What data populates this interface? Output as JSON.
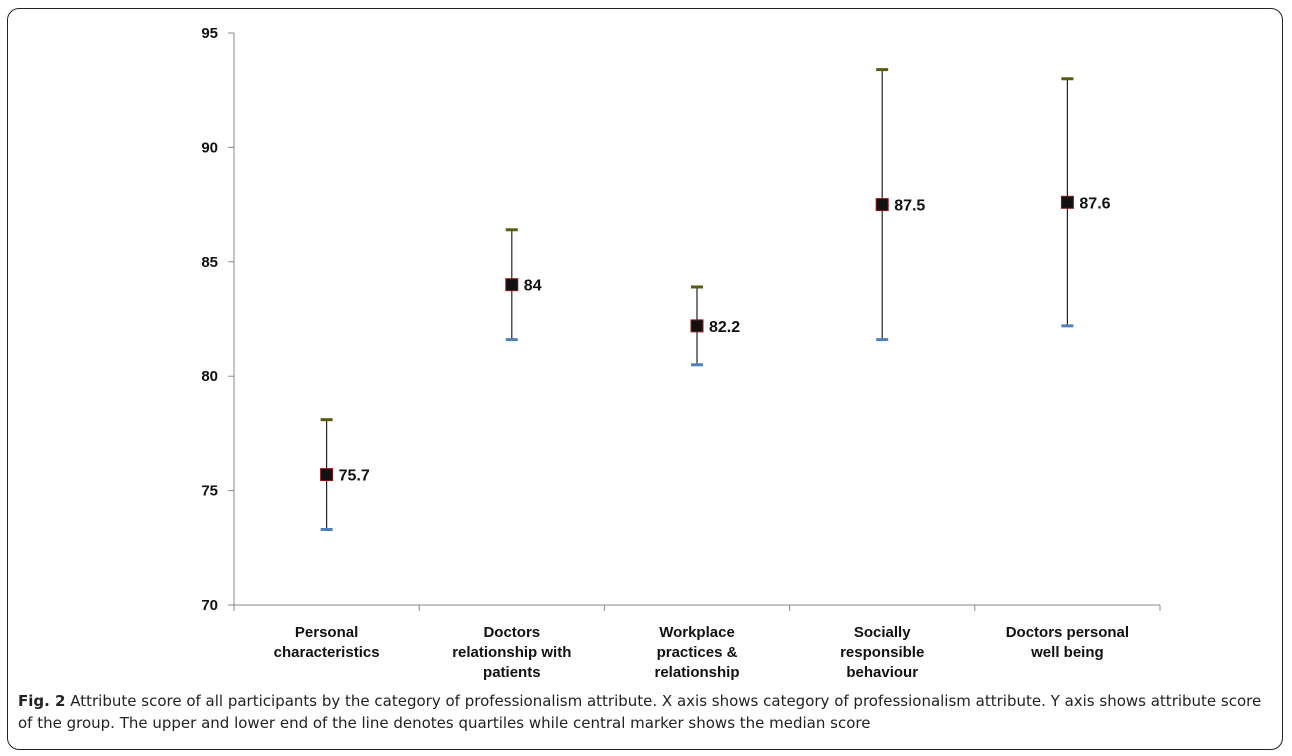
{
  "chart_data": {
    "type": "errorbar",
    "categories": [
      [
        "Personal",
        "characteristics"
      ],
      [
        "Doctors",
        "relationship with",
        "patients"
      ],
      [
        "Workplace",
        "practices &",
        "relationship"
      ],
      [
        "Socially",
        "responsible",
        "behaviour"
      ],
      [
        "Doctors personal",
        "well being"
      ]
    ],
    "series": [
      {
        "median": [
          75.7,
          84,
          82.2,
          87.5,
          87.6
        ],
        "upper_quartile": [
          78.1,
          86.4,
          83.9,
          93.4,
          93.0
        ],
        "lower_quartile": [
          73.3,
          81.6,
          80.5,
          81.6,
          82.2
        ]
      }
    ],
    "median_labels": [
      "75.7",
      "84",
      "82.2",
      "87.5",
      "87.6"
    ],
    "yticks": [
      70,
      75,
      80,
      85,
      90,
      95
    ],
    "ylim": [
      70,
      95
    ],
    "grid": false,
    "colors": {
      "marker": "#111111",
      "marker_edge": "#8b1a1a",
      "upper_cap": "#5a5a10",
      "lower_cap": "#4f81bd",
      "whisker": "#222222"
    }
  },
  "caption": {
    "label": "Fig. 2",
    "text": " Attribute score of all participants by the category of professionalism attribute. X axis shows category of professionalism attribute. Y axis shows attribute score of the group. The upper and lower end of the line denotes quartiles while central marker shows the median score"
  }
}
